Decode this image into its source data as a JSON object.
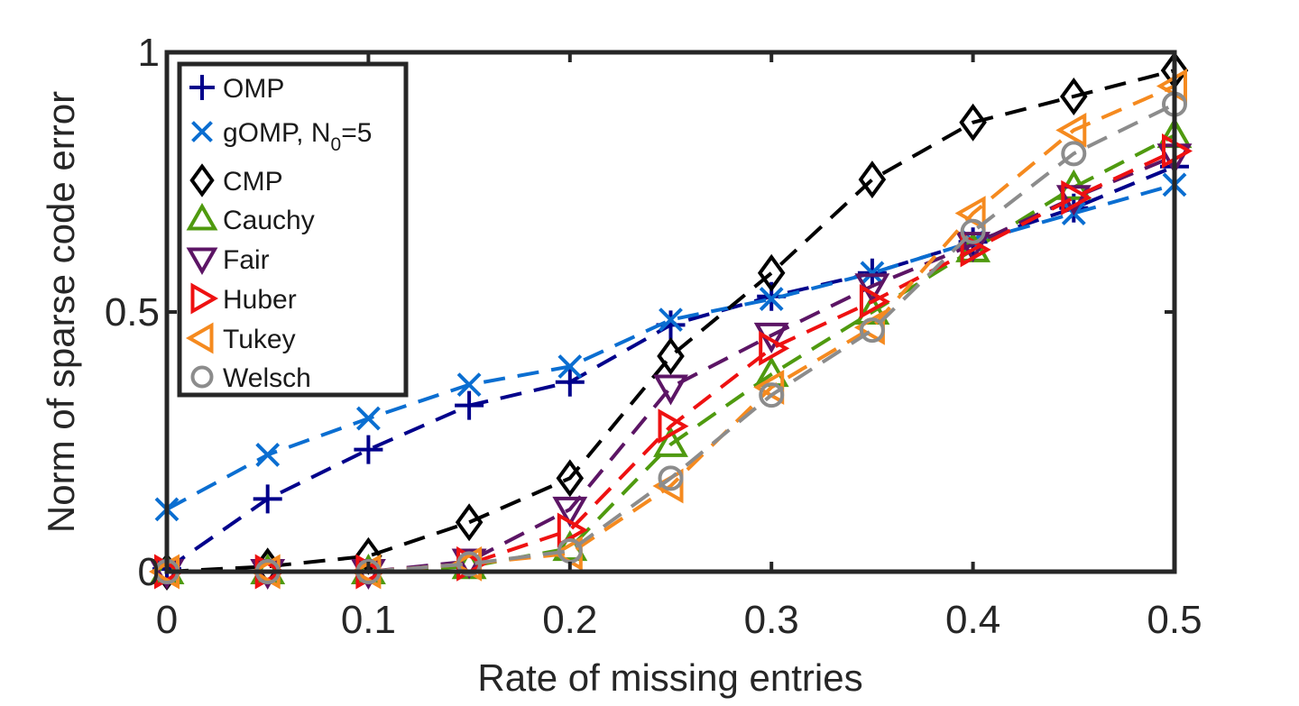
{
  "chart_data": {
    "type": "line",
    "xlabel": "Rate of missing entries",
    "ylabel": "Norm of sparse code error",
    "xlim": [
      0,
      0.5
    ],
    "ylim": [
      0,
      1
    ],
    "x_ticks": [
      "0",
      "0.1",
      "0.2",
      "0.3",
      "0.4",
      "0.5"
    ],
    "y_ticks": [
      "0",
      "0.5",
      "1"
    ],
    "grid": false,
    "legend_position": "top-left",
    "x": [
      0,
      0.05,
      0.1,
      0.15,
      0.2,
      0.25,
      0.3,
      0.35,
      0.4,
      0.45,
      0.5
    ],
    "series": [
      {
        "name": "OMP",
        "name_sub": "",
        "name_tail": "",
        "color": "#00008b",
        "marker": "plus",
        "values": [
          0.005,
          0.14,
          0.235,
          0.32,
          0.365,
          0.475,
          0.53,
          0.575,
          0.635,
          0.7,
          0.78
        ]
      },
      {
        "name": "gOMP, N",
        "name_sub": "0",
        "name_tail": "=5",
        "color": "#0a6ed1",
        "marker": "x",
        "values": [
          0.12,
          0.225,
          0.295,
          0.36,
          0.395,
          0.485,
          0.525,
          0.575,
          0.635,
          0.69,
          0.745
        ]
      },
      {
        "name": "CMP",
        "name_sub": "",
        "name_tail": "",
        "color": "#000000",
        "marker": "diamond",
        "values": [
          0.0,
          0.01,
          0.03,
          0.095,
          0.18,
          0.415,
          0.575,
          0.755,
          0.865,
          0.915,
          0.965
        ]
      },
      {
        "name": "Cauchy",
        "name_sub": "",
        "name_tail": "",
        "color": "#4f9a0f",
        "marker": "triangle-up",
        "values": [
          0.0,
          0.0,
          0.0,
          0.01,
          0.045,
          0.245,
          0.38,
          0.5,
          0.62,
          0.74,
          0.84
        ]
      },
      {
        "name": "Fair",
        "name_sub": "",
        "name_tail": "",
        "color": "#5c1565",
        "marker": "triangle-down",
        "values": [
          0.0,
          0.0,
          0.0,
          0.02,
          0.12,
          0.355,
          0.455,
          0.55,
          0.63,
          0.72,
          0.8
        ]
      },
      {
        "name": "Huber",
        "name_sub": "",
        "name_tail": "",
        "color": "#ee1111",
        "marker": "triangle-right",
        "values": [
          0.0,
          0.0,
          0.0,
          0.015,
          0.08,
          0.28,
          0.43,
          0.52,
          0.62,
          0.72,
          0.81
        ]
      },
      {
        "name": "Tukey",
        "name_sub": "",
        "name_tail": "",
        "color": "#f58a1f",
        "marker": "triangle-left",
        "values": [
          0.0,
          0.0,
          0.0,
          0.015,
          0.035,
          0.165,
          0.355,
          0.47,
          0.69,
          0.85,
          0.935
        ]
      },
      {
        "name": "Welsch",
        "name_sub": "",
        "name_tail": "",
        "color": "#8c8c8c",
        "marker": "circle",
        "values": [
          0.0,
          0.0,
          0.0,
          0.015,
          0.04,
          0.18,
          0.34,
          0.465,
          0.655,
          0.805,
          0.9
        ]
      }
    ]
  }
}
